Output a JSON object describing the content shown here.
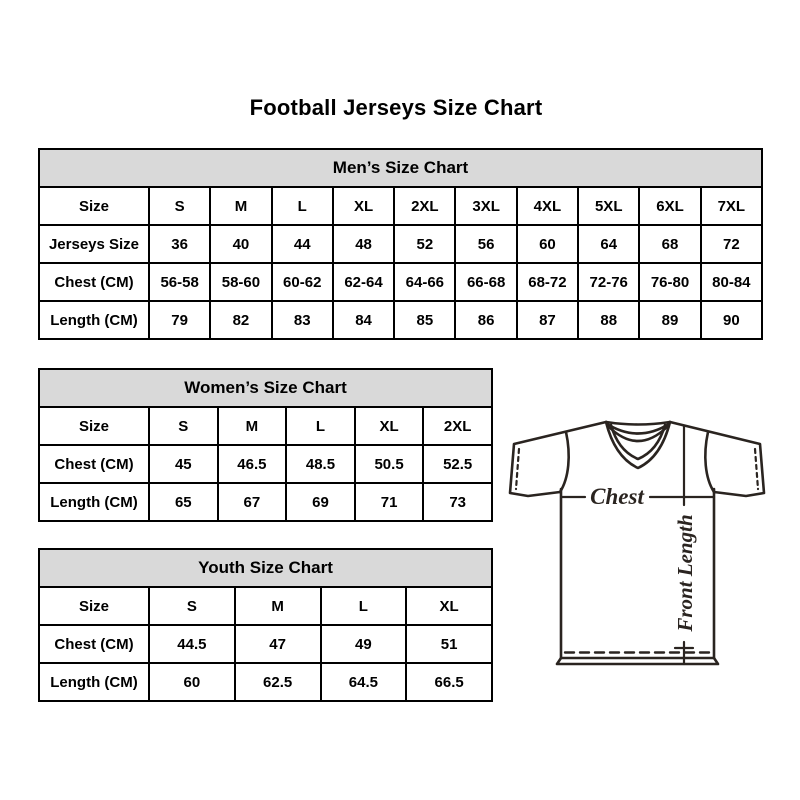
{
  "page": {
    "title": "Football Jerseys Size Chart"
  },
  "colors": {
    "background": "#ffffff",
    "table_border": "#000000",
    "table_header_bg": "#d9d9d9",
    "text": "#000000",
    "jersey_line": "#2a2420"
  },
  "jersey_diagram": {
    "chest_label": "Chest",
    "front_length_label": "Front Length"
  },
  "chart_data": [
    {
      "type": "table",
      "title": "Men’s Size Chart",
      "rows": [
        [
          "Size",
          "S",
          "M",
          "L",
          "XL",
          "2XL",
          "3XL",
          "4XL",
          "5XL",
          "6XL",
          "7XL"
        ],
        [
          "Jerseys Size",
          "36",
          "40",
          "44",
          "48",
          "52",
          "56",
          "60",
          "64",
          "68",
          "72"
        ],
        [
          "Chest (CM)",
          "56-58",
          "58-60",
          "60-62",
          "62-64",
          "64-66",
          "66-68",
          "68-72",
          "72-76",
          "76-80",
          "80-84"
        ],
        [
          "Length (CM)",
          "79",
          "82",
          "83",
          "84",
          "85",
          "86",
          "87",
          "88",
          "89",
          "90"
        ]
      ]
    },
    {
      "type": "table",
      "title": "Women’s Size Chart",
      "rows": [
        [
          "Size",
          "S",
          "M",
          "L",
          "XL",
          "2XL"
        ],
        [
          "Chest (CM)",
          "45",
          "46.5",
          "48.5",
          "50.5",
          "52.5"
        ],
        [
          "Length (CM)",
          "65",
          "67",
          "69",
          "71",
          "73"
        ]
      ]
    },
    {
      "type": "table",
      "title": "Youth Size Chart",
      "rows": [
        [
          "Size",
          "S",
          "M",
          "L",
          "XL"
        ],
        [
          "Chest (CM)",
          "44.5",
          "47",
          "49",
          "51"
        ],
        [
          "Length (CM)",
          "60",
          "62.5",
          "64.5",
          "66.5"
        ]
      ]
    }
  ]
}
